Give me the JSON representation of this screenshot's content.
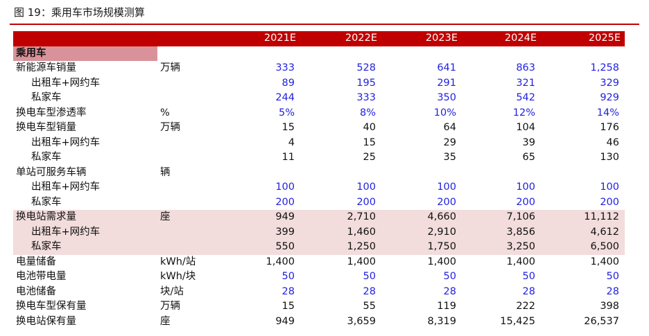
{
  "title": "图 19：乘用车市场规模测算",
  "colors": {
    "header_bg": "#c00000",
    "section_bg": "#d9929a",
    "highlight_bg": "#f2dcdc",
    "input_value": "#1f1fe0"
  },
  "table": {
    "years": [
      "2021E",
      "2022E",
      "2023E",
      "2024E",
      "2025E"
    ],
    "section_label": "乘用车",
    "rows": [
      {
        "label": "新能源车销量",
        "unit": "万辆",
        "values": [
          "333",
          "528",
          "641",
          "863",
          "1,258"
        ],
        "indent": false,
        "blue": true,
        "shade": false
      },
      {
        "label": "出租车+网约车",
        "unit": "",
        "values": [
          "89",
          "195",
          "291",
          "321",
          "329"
        ],
        "indent": true,
        "blue": true,
        "shade": false
      },
      {
        "label": "私家车",
        "unit": "",
        "values": [
          "244",
          "333",
          "350",
          "542",
          "929"
        ],
        "indent": true,
        "blue": true,
        "shade": false
      },
      {
        "label": "换电车型渗透率",
        "unit": "%",
        "values": [
          "5%",
          "8%",
          "10%",
          "12%",
          "14%"
        ],
        "indent": false,
        "blue": true,
        "shade": false
      },
      {
        "label": "换电车型销量",
        "unit": "万辆",
        "values": [
          "15",
          "40",
          "64",
          "104",
          "176"
        ],
        "indent": false,
        "blue": false,
        "shade": false
      },
      {
        "label": "出租车+网约车",
        "unit": "",
        "values": [
          "4",
          "15",
          "29",
          "39",
          "46"
        ],
        "indent": true,
        "blue": false,
        "shade": false
      },
      {
        "label": "私家车",
        "unit": "",
        "values": [
          "11",
          "25",
          "35",
          "65",
          "130"
        ],
        "indent": true,
        "blue": false,
        "shade": false
      },
      {
        "label": "单站可服务车辆",
        "unit": "辆",
        "values": [
          "",
          "",
          "",
          "",
          ""
        ],
        "indent": false,
        "blue": false,
        "shade": false
      },
      {
        "label": "出租车+网约车",
        "unit": "",
        "values": [
          "100",
          "100",
          "100",
          "100",
          "100"
        ],
        "indent": true,
        "blue": true,
        "shade": false
      },
      {
        "label": "私家车",
        "unit": "",
        "values": [
          "200",
          "200",
          "200",
          "200",
          "200"
        ],
        "indent": true,
        "blue": true,
        "shade": false
      },
      {
        "label": "换电站需求量",
        "unit": "座",
        "values": [
          "949",
          "2,710",
          "4,660",
          "7,106",
          "11,112"
        ],
        "indent": false,
        "blue": false,
        "shade": true
      },
      {
        "label": "出租车+网约车",
        "unit": "",
        "values": [
          "399",
          "1,460",
          "2,910",
          "3,856",
          "4,612"
        ],
        "indent": true,
        "blue": false,
        "shade": true
      },
      {
        "label": "私家车",
        "unit": "",
        "values": [
          "550",
          "1,250",
          "1,750",
          "3,250",
          "6,500"
        ],
        "indent": true,
        "blue": false,
        "shade": true
      },
      {
        "label": "电量储备",
        "unit": "kWh/站",
        "values": [
          "1,400",
          "1,400",
          "1,400",
          "1,400",
          "1,400"
        ],
        "indent": false,
        "blue": false,
        "shade": false
      },
      {
        "label": "电池带电量",
        "unit": "kWh/块",
        "values": [
          "50",
          "50",
          "50",
          "50",
          "50"
        ],
        "indent": false,
        "blue": true,
        "shade": false
      },
      {
        "label": "电池储备",
        "unit": "块/站",
        "values": [
          "28",
          "28",
          "28",
          "28",
          "28"
        ],
        "indent": false,
        "blue": true,
        "shade": false
      },
      {
        "label": "换电车型保有量",
        "unit": "万辆",
        "values": [
          "15",
          "55",
          "119",
          "222",
          "398"
        ],
        "indent": false,
        "blue": false,
        "shade": false
      },
      {
        "label": "换电站保有量",
        "unit": "座",
        "values": [
          "949",
          "3,659",
          "8,319",
          "15,425",
          "26,537"
        ],
        "indent": false,
        "blue": false,
        "shade": false
      }
    ]
  }
}
